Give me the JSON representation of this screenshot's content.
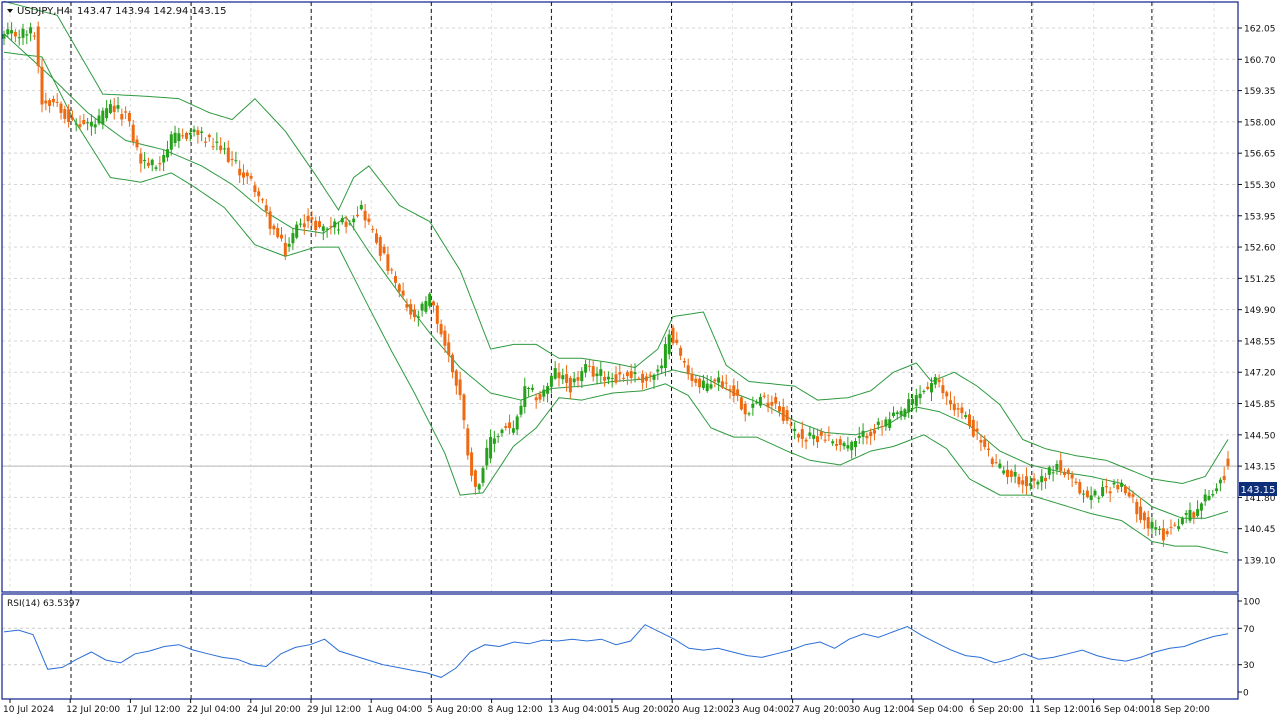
{
  "header": {
    "symbol_info": "USDJPY,H4",
    "ohlc": "143.47 143.94 142.94 143.15"
  },
  "price_tag": "143.15",
  "rsi_label": "RSI(14) 63.5397",
  "colors": {
    "bull_candle": "#26a11c",
    "bear_candle": "#ee6a12",
    "bollinger": "#2e9a3f",
    "rsi_line": "#2b6fd6",
    "price_tag_bg": "#0d2f7a",
    "frame": "#0b1f8a"
  },
  "chart_data": [
    {
      "type": "candlestick",
      "title": "USDJPY,H4",
      "indicator": "Bollinger Bands",
      "y_ticks": [
        "162.05",
        "160.70",
        "159.35",
        "158.00",
        "156.65",
        "155.30",
        "153.95",
        "152.60",
        "151.25",
        "149.90",
        "148.55",
        "147.20",
        "145.85",
        "144.50",
        "143.15",
        "141.80",
        "140.45",
        "139.10"
      ],
      "ylim": [
        139.0,
        162.6
      ],
      "x_ticks": [
        "10 Jul 2024",
        "12 Jul 20:00",
        "17 Jul 12:00",
        "22 Jul 04:00",
        "24 Jul 20:00",
        "29 Jul 12:00",
        "1 Aug 04:00",
        "5 Aug 20:00",
        "8 Aug 12:00",
        "13 Aug 04:00",
        "15 Aug 20:00",
        "20 Aug 12:00",
        "23 Aug 04:00",
        "27 Aug 20:00",
        "30 Aug 12:00",
        "4 Sep 04:00",
        "6 Sep 20:00",
        "11 Sep 12:00",
        "16 Sep 04:00",
        "18 Sep 20:00"
      ],
      "last_price": 143.15,
      "grid": true,
      "close_path": [
        [
          0,
          161.7
        ],
        [
          8,
          161.9
        ],
        [
          10,
          158.9
        ],
        [
          14,
          158.9
        ],
        [
          18,
          157.9
        ],
        [
          24,
          157.9
        ],
        [
          28,
          158.6
        ],
        [
          32,
          158.3
        ],
        [
          36,
          156.3
        ],
        [
          40,
          156.1
        ],
        [
          44,
          157.2
        ],
        [
          50,
          157.6
        ],
        [
          54,
          157.1
        ],
        [
          58,
          156.7
        ],
        [
          62,
          155.9
        ],
        [
          66,
          155.2
        ],
        [
          70,
          153.6
        ],
        [
          74,
          152.4
        ],
        [
          78,
          153.8
        ],
        [
          84,
          153.4
        ],
        [
          90,
          153.7
        ],
        [
          94,
          154.3
        ],
        [
          96,
          153.6
        ],
        [
          100,
          152.1
        ],
        [
          104,
          150.6
        ],
        [
          108,
          149.4
        ],
        [
          112,
          150.4
        ],
        [
          116,
          148.4
        ],
        [
          120,
          146.2
        ],
        [
          122,
          143.8
        ],
        [
          124,
          142.1
        ],
        [
          128,
          144.2
        ],
        [
          132,
          144.9
        ],
        [
          134,
          144.6
        ],
        [
          137,
          146.4
        ],
        [
          141,
          146.1
        ],
        [
          145,
          147.2
        ],
        [
          149,
          146.6
        ],
        [
          153,
          147.3
        ],
        [
          157,
          147.1
        ],
        [
          161,
          147.0
        ],
        [
          165,
          147.1
        ],
        [
          169,
          146.9
        ],
        [
          173,
          147.3
        ],
        [
          175,
          149.1
        ],
        [
          179,
          147.5
        ],
        [
          183,
          146.5
        ],
        [
          187,
          146.9
        ],
        [
          191,
          146.6
        ],
        [
          195,
          145.6
        ],
        [
          199,
          146.0
        ],
        [
          203,
          145.9
        ],
        [
          207,
          144.8
        ],
        [
          211,
          144.3
        ],
        [
          215,
          144.5
        ],
        [
          219,
          144.2
        ],
        [
          223,
          144.0
        ],
        [
          227,
          144.6
        ],
        [
          231,
          144.9
        ],
        [
          235,
          145.3
        ],
        [
          237,
          145.6
        ],
        [
          241,
          146.3
        ],
        [
          245,
          146.8
        ],
        [
          249,
          145.9
        ],
        [
          253,
          145.2
        ],
        [
          257,
          144.2
        ],
        [
          261,
          143.1
        ],
        [
          265,
          142.8
        ],
        [
          269,
          142.4
        ],
        [
          273,
          142.6
        ],
        [
          277,
          143.2
        ],
        [
          281,
          142.4
        ],
        [
          285,
          141.8
        ],
        [
          289,
          142.1
        ],
        [
          293,
          142.4
        ],
        [
          297,
          141.6
        ],
        [
          301,
          140.6
        ],
        [
          305,
          140.2
        ],
        [
          309,
          140.8
        ],
        [
          313,
          141.2
        ],
        [
          317,
          141.9
        ],
        [
          321,
          142.8
        ],
        [
          322,
          143.15
        ]
      ],
      "upper_band_path": [
        [
          0,
          163.2
        ],
        [
          14,
          162.6
        ],
        [
          26,
          159.2
        ],
        [
          38,
          159.1
        ],
        [
          46,
          159.0
        ],
        [
          54,
          158.4
        ],
        [
          60,
          158.1
        ],
        [
          66,
          159.0
        ],
        [
          74,
          157.6
        ],
        [
          82,
          155.7
        ],
        [
          88,
          154.2
        ],
        [
          92,
          155.6
        ],
        [
          96,
          156.1
        ],
        [
          104,
          154.4
        ],
        [
          112,
          153.7
        ],
        [
          120,
          151.6
        ],
        [
          128,
          148.2
        ],
        [
          134,
          148.4
        ],
        [
          140,
          148.4
        ],
        [
          146,
          147.8
        ],
        [
          152,
          147.8
        ],
        [
          160,
          147.6
        ],
        [
          166,
          147.4
        ],
        [
          172,
          148.2
        ],
        [
          176,
          149.6
        ],
        [
          184,
          149.8
        ],
        [
          190,
          147.5
        ],
        [
          196,
          146.8
        ],
        [
          202,
          146.7
        ],
        [
          208,
          146.6
        ],
        [
          214,
          146.0
        ],
        [
          222,
          146.1
        ],
        [
          228,
          146.4
        ],
        [
          234,
          147.2
        ],
        [
          240,
          147.6
        ],
        [
          244,
          146.8
        ],
        [
          250,
          147.2
        ],
        [
          256,
          146.6
        ],
        [
          262,
          145.8
        ],
        [
          268,
          144.3
        ],
        [
          274,
          143.9
        ],
        [
          282,
          143.6
        ],
        [
          290,
          143.4
        ],
        [
          296,
          143.0
        ],
        [
          302,
          142.6
        ],
        [
          310,
          142.4
        ],
        [
          316,
          142.7
        ],
        [
          322,
          144.3
        ]
      ],
      "middle_band_path": [
        [
          0,
          161.8
        ],
        [
          12,
          160.0
        ],
        [
          22,
          158.4
        ],
        [
          32,
          157.2
        ],
        [
          42,
          156.8
        ],
        [
          52,
          156.1
        ],
        [
          60,
          155.3
        ],
        [
          68,
          154.2
        ],
        [
          76,
          153.4
        ],
        [
          84,
          153.2
        ],
        [
          90,
          153.9
        ],
        [
          96,
          152.4
        ],
        [
          104,
          150.6
        ],
        [
          112,
          148.9
        ],
        [
          120,
          147.4
        ],
        [
          128,
          146.3
        ],
        [
          136,
          146.0
        ],
        [
          144,
          146.5
        ],
        [
          152,
          146.6
        ],
        [
          160,
          146.8
        ],
        [
          168,
          146.9
        ],
        [
          176,
          147.3
        ],
        [
          184,
          147.0
        ],
        [
          192,
          146.3
        ],
        [
          200,
          145.8
        ],
        [
          208,
          145.1
        ],
        [
          216,
          144.6
        ],
        [
          224,
          144.5
        ],
        [
          232,
          144.9
        ],
        [
          240,
          145.7
        ],
        [
          246,
          145.5
        ],
        [
          254,
          144.9
        ],
        [
          262,
          143.8
        ],
        [
          270,
          143.2
        ],
        [
          278,
          142.9
        ],
        [
          286,
          142.7
        ],
        [
          294,
          142.4
        ],
        [
          302,
          141.4
        ],
        [
          310,
          140.9
        ],
        [
          316,
          140.9
        ],
        [
          322,
          141.2
        ]
      ],
      "lower_band_path": [
        [
          0,
          161.0
        ],
        [
          10,
          160.8
        ],
        [
          18,
          158.2
        ],
        [
          28,
          155.6
        ],
        [
          36,
          155.4
        ],
        [
          44,
          155.8
        ],
        [
          50,
          155.2
        ],
        [
          58,
          154.3
        ],
        [
          66,
          152.7
        ],
        [
          74,
          152.2
        ],
        [
          82,
          152.6
        ],
        [
          88,
          152.6
        ],
        [
          96,
          150.0
        ],
        [
          102,
          148.1
        ],
        [
          108,
          146.3
        ],
        [
          116,
          143.7
        ],
        [
          120,
          141.9
        ],
        [
          126,
          142.0
        ],
        [
          134,
          144.0
        ],
        [
          140,
          144.8
        ],
        [
          146,
          146.1
        ],
        [
          152,
          146.0
        ],
        [
          160,
          146.3
        ],
        [
          168,
          146.4
        ],
        [
          174,
          146.7
        ],
        [
          180,
          146.2
        ],
        [
          186,
          144.8
        ],
        [
          192,
          144.4
        ],
        [
          198,
          144.4
        ],
        [
          206,
          143.8
        ],
        [
          212,
          143.4
        ],
        [
          220,
          143.2
        ],
        [
          228,
          143.8
        ],
        [
          234,
          144.0
        ],
        [
          242,
          144.5
        ],
        [
          248,
          143.9
        ],
        [
          254,
          142.6
        ],
        [
          262,
          141.9
        ],
        [
          270,
          141.9
        ],
        [
          278,
          141.5
        ],
        [
          286,
          141.1
        ],
        [
          294,
          140.8
        ],
        [
          302,
          139.9
        ],
        [
          308,
          139.7
        ],
        [
          314,
          139.7
        ],
        [
          322,
          139.4
        ]
      ]
    },
    {
      "type": "line",
      "title": "RSI(14) 63.5397",
      "series": [
        {
          "name": "RSI(14)",
          "values": [
            66,
            68,
            63,
            25,
            27,
            36,
            44,
            35,
            32,
            42,
            45,
            50,
            52,
            46,
            42,
            38,
            36,
            30,
            28,
            42,
            49,
            52,
            58,
            45,
            40,
            35,
            30,
            27,
            24,
            21,
            16,
            26,
            44,
            52,
            50,
            55,
            53,
            57,
            56,
            58,
            56,
            58,
            52,
            56,
            74,
            66,
            58,
            48,
            46,
            48,
            44,
            40,
            38,
            42,
            46,
            52,
            55,
            48,
            58,
            64,
            60,
            66,
            72,
            62,
            54,
            46,
            40,
            38,
            32,
            36,
            42,
            36,
            38,
            42,
            46,
            40,
            36,
            34,
            38,
            44,
            48,
            50,
            56,
            61,
            64
          ]
        }
      ],
      "y_ticks": [
        "100",
        "70",
        "30",
        "0"
      ],
      "ylim": [
        0,
        100
      ],
      "levels": [
        70,
        30
      ]
    }
  ]
}
